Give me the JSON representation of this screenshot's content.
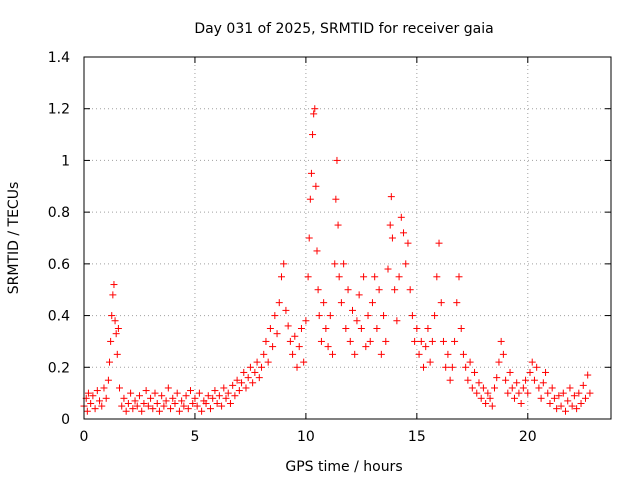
{
  "chart_data": {
    "type": "scatter",
    "title": "Day 031 of 2025, SRMTID for receiver gaia",
    "xlabel": "GPS time / hours",
    "ylabel": "SRMTID / TECUs",
    "xlim": [
      0,
      23.75
    ],
    "ylim": [
      0,
      1.4
    ],
    "xticks": [
      0,
      5,
      10,
      15,
      20
    ],
    "yticks": [
      0,
      0.2,
      0.4,
      0.6,
      0.8,
      1,
      1.2,
      1.4
    ],
    "xtick_labels": [
      "0",
      "5",
      "10",
      "15",
      "20"
    ],
    "ytick_labels": [
      "0",
      "0.2",
      "0.4",
      "0.6",
      "0.8",
      "1",
      "1.2",
      "1.4"
    ],
    "grid": true,
    "marker": "+",
    "series": [
      {
        "name": "SRMTID",
        "color": "#ff0000",
        "points": [
          [
            0.0,
            0.05
          ],
          [
            0.1,
            0.08
          ],
          [
            0.15,
            0.03
          ],
          [
            0.2,
            0.1
          ],
          [
            0.3,
            0.06
          ],
          [
            0.4,
            0.09
          ],
          [
            0.5,
            0.04
          ],
          [
            0.6,
            0.11
          ],
          [
            0.7,
            0.07
          ],
          [
            0.8,
            0.05
          ],
          [
            0.9,
            0.12
          ],
          [
            1.0,
            0.08
          ],
          [
            1.1,
            0.15
          ],
          [
            1.15,
            0.22
          ],
          [
            1.2,
            0.3
          ],
          [
            1.25,
            0.4
          ],
          [
            1.3,
            0.48
          ],
          [
            1.35,
            0.52
          ],
          [
            1.4,
            0.38
          ],
          [
            1.45,
            0.33
          ],
          [
            1.5,
            0.25
          ],
          [
            1.55,
            0.35
          ],
          [
            1.6,
            0.12
          ],
          [
            1.7,
            0.05
          ],
          [
            1.8,
            0.08
          ],
          [
            1.9,
            0.03
          ],
          [
            2.0,
            0.06
          ],
          [
            2.1,
            0.1
          ],
          [
            2.2,
            0.04
          ],
          [
            2.3,
            0.07
          ],
          [
            2.4,
            0.05
          ],
          [
            2.5,
            0.09
          ],
          [
            2.6,
            0.03
          ],
          [
            2.7,
            0.06
          ],
          [
            2.8,
            0.11
          ],
          [
            2.9,
            0.05
          ],
          [
            3.0,
            0.08
          ],
          [
            3.1,
            0.04
          ],
          [
            3.2,
            0.1
          ],
          [
            3.3,
            0.06
          ],
          [
            3.4,
            0.03
          ],
          [
            3.5,
            0.09
          ],
          [
            3.6,
            0.05
          ],
          [
            3.7,
            0.07
          ],
          [
            3.8,
            0.12
          ],
          [
            3.9,
            0.04
          ],
          [
            4.0,
            0.08
          ],
          [
            4.1,
            0.06
          ],
          [
            4.2,
            0.1
          ],
          [
            4.3,
            0.03
          ],
          [
            4.4,
            0.07
          ],
          [
            4.5,
            0.05
          ],
          [
            4.6,
            0.09
          ],
          [
            4.7,
            0.04
          ],
          [
            4.8,
            0.11
          ],
          [
            4.9,
            0.06
          ],
          [
            5.0,
            0.08
          ],
          [
            5.1,
            0.05
          ],
          [
            5.2,
            0.1
          ],
          [
            5.3,
            0.03
          ],
          [
            5.4,
            0.07
          ],
          [
            5.5,
            0.06
          ],
          [
            5.6,
            0.09
          ],
          [
            5.7,
            0.04
          ],
          [
            5.8,
            0.08
          ],
          [
            5.9,
            0.11
          ],
          [
            6.0,
            0.06
          ],
          [
            6.1,
            0.09
          ],
          [
            6.2,
            0.05
          ],
          [
            6.3,
            0.12
          ],
          [
            6.4,
            0.08
          ],
          [
            6.5,
            0.1
          ],
          [
            6.6,
            0.06
          ],
          [
            6.7,
            0.13
          ],
          [
            6.8,
            0.09
          ],
          [
            6.9,
            0.15
          ],
          [
            7.0,
            0.11
          ],
          [
            7.1,
            0.14
          ],
          [
            7.2,
            0.18
          ],
          [
            7.3,
            0.12
          ],
          [
            7.4,
            0.16
          ],
          [
            7.5,
            0.2
          ],
          [
            7.6,
            0.14
          ],
          [
            7.7,
            0.18
          ],
          [
            7.8,
            0.22
          ],
          [
            7.9,
            0.16
          ],
          [
            8.0,
            0.2
          ],
          [
            8.1,
            0.25
          ],
          [
            8.2,
            0.3
          ],
          [
            8.3,
            0.22
          ],
          [
            8.4,
            0.35
          ],
          [
            8.5,
            0.28
          ],
          [
            8.6,
            0.4
          ],
          [
            8.7,
            0.33
          ],
          [
            8.8,
            0.45
          ],
          [
            8.9,
            0.55
          ],
          [
            9.0,
            0.6
          ],
          [
            9.1,
            0.42
          ],
          [
            9.2,
            0.36
          ],
          [
            9.3,
            0.3
          ],
          [
            9.4,
            0.25
          ],
          [
            9.5,
            0.32
          ],
          [
            9.6,
            0.2
          ],
          [
            9.7,
            0.28
          ],
          [
            9.8,
            0.35
          ],
          [
            9.9,
            0.22
          ],
          [
            10.0,
            0.38
          ],
          [
            10.1,
            0.55
          ],
          [
            10.15,
            0.7
          ],
          [
            10.2,
            0.85
          ],
          [
            10.25,
            0.95
          ],
          [
            10.3,
            1.1
          ],
          [
            10.35,
            1.18
          ],
          [
            10.4,
            1.2
          ],
          [
            10.45,
            0.9
          ],
          [
            10.5,
            0.65
          ],
          [
            10.55,
            0.5
          ],
          [
            10.6,
            0.4
          ],
          [
            10.7,
            0.3
          ],
          [
            10.8,
            0.45
          ],
          [
            10.9,
            0.35
          ],
          [
            11.0,
            0.28
          ],
          [
            11.1,
            0.4
          ],
          [
            11.2,
            0.25
          ],
          [
            11.3,
            0.6
          ],
          [
            11.35,
            0.85
          ],
          [
            11.4,
            1.0
          ],
          [
            11.45,
            0.75
          ],
          [
            11.5,
            0.55
          ],
          [
            11.6,
            0.45
          ],
          [
            11.7,
            0.6
          ],
          [
            11.8,
            0.35
          ],
          [
            11.9,
            0.5
          ],
          [
            12.0,
            0.3
          ],
          [
            12.1,
            0.42
          ],
          [
            12.2,
            0.25
          ],
          [
            12.3,
            0.38
          ],
          [
            12.4,
            0.48
          ],
          [
            12.5,
            0.35
          ],
          [
            12.6,
            0.55
          ],
          [
            12.7,
            0.28
          ],
          [
            12.8,
            0.4
          ],
          [
            12.9,
            0.3
          ],
          [
            13.0,
            0.45
          ],
          [
            13.1,
            0.55
          ],
          [
            13.2,
            0.35
          ],
          [
            13.3,
            0.5
          ],
          [
            13.4,
            0.25
          ],
          [
            13.5,
            0.4
          ],
          [
            13.6,
            0.3
          ],
          [
            13.7,
            0.58
          ],
          [
            13.8,
            0.75
          ],
          [
            13.85,
            0.86
          ],
          [
            13.9,
            0.7
          ],
          [
            14.0,
            0.5
          ],
          [
            14.1,
            0.38
          ],
          [
            14.2,
            0.55
          ],
          [
            14.3,
            0.78
          ],
          [
            14.4,
            0.72
          ],
          [
            14.5,
            0.6
          ],
          [
            14.6,
            0.68
          ],
          [
            14.7,
            0.5
          ],
          [
            14.8,
            0.4
          ],
          [
            14.9,
            0.3
          ],
          [
            15.0,
            0.35
          ],
          [
            15.1,
            0.25
          ],
          [
            15.2,
            0.3
          ],
          [
            15.3,
            0.2
          ],
          [
            15.4,
            0.28
          ],
          [
            15.5,
            0.35
          ],
          [
            15.6,
            0.22
          ],
          [
            15.7,
            0.3
          ],
          [
            15.8,
            0.4
          ],
          [
            15.9,
            0.55
          ],
          [
            16.0,
            0.68
          ],
          [
            16.1,
            0.45
          ],
          [
            16.2,
            0.3
          ],
          [
            16.3,
            0.2
          ],
          [
            16.4,
            0.25
          ],
          [
            16.5,
            0.15
          ],
          [
            16.6,
            0.2
          ],
          [
            16.7,
            0.3
          ],
          [
            16.8,
            0.45
          ],
          [
            16.9,
            0.55
          ],
          [
            17.0,
            0.35
          ],
          [
            17.1,
            0.25
          ],
          [
            17.2,
            0.2
          ],
          [
            17.3,
            0.15
          ],
          [
            17.4,
            0.22
          ],
          [
            17.5,
            0.12
          ],
          [
            17.6,
            0.18
          ],
          [
            17.7,
            0.1
          ],
          [
            17.8,
            0.14
          ],
          [
            17.9,
            0.08
          ],
          [
            18.0,
            0.12
          ],
          [
            18.1,
            0.06
          ],
          [
            18.2,
            0.1
          ],
          [
            18.3,
            0.08
          ],
          [
            18.4,
            0.05
          ],
          [
            18.5,
            0.12
          ],
          [
            18.6,
            0.16
          ],
          [
            18.7,
            0.22
          ],
          [
            18.8,
            0.3
          ],
          [
            18.9,
            0.25
          ],
          [
            19.0,
            0.15
          ],
          [
            19.1,
            0.1
          ],
          [
            19.2,
            0.18
          ],
          [
            19.3,
            0.12
          ],
          [
            19.4,
            0.08
          ],
          [
            19.5,
            0.14
          ],
          [
            19.6,
            0.1
          ],
          [
            19.7,
            0.06
          ],
          [
            19.8,
            0.12
          ],
          [
            19.9,
            0.15
          ],
          [
            20.0,
            0.1
          ],
          [
            20.1,
            0.18
          ],
          [
            20.2,
            0.22
          ],
          [
            20.3,
            0.15
          ],
          [
            20.4,
            0.2
          ],
          [
            20.5,
            0.12
          ],
          [
            20.6,
            0.08
          ],
          [
            20.7,
            0.14
          ],
          [
            20.8,
            0.18
          ],
          [
            20.9,
            0.1
          ],
          [
            21.0,
            0.06
          ],
          [
            21.1,
            0.12
          ],
          [
            21.2,
            0.08
          ],
          [
            21.3,
            0.04
          ],
          [
            21.4,
            0.09
          ],
          [
            21.5,
            0.05
          ],
          [
            21.6,
            0.1
          ],
          [
            21.7,
            0.03
          ],
          [
            21.8,
            0.07
          ],
          [
            21.9,
            0.12
          ],
          [
            22.0,
            0.05
          ],
          [
            22.1,
            0.09
          ],
          [
            22.2,
            0.04
          ],
          [
            22.3,
            0.1
          ],
          [
            22.4,
            0.06
          ],
          [
            22.5,
            0.13
          ],
          [
            22.6,
            0.08
          ],
          [
            22.7,
            0.17
          ],
          [
            22.8,
            0.1
          ]
        ]
      }
    ]
  }
}
